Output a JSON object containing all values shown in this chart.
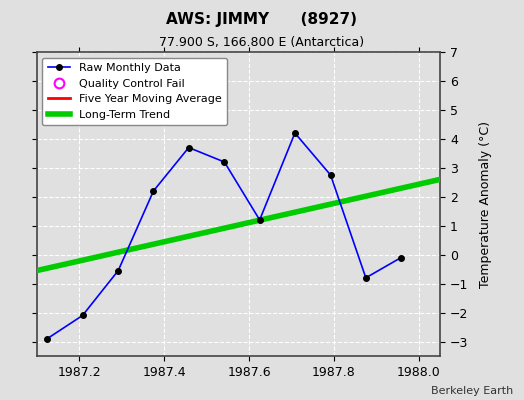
{
  "title": "AWS: JIMMY      (8927)",
  "subtitle": "77.900 S, 166.800 E (Antarctica)",
  "ylabel": "Temperature Anomaly (°C)",
  "credit": "Berkeley Earth",
  "xlim": [
    1987.1,
    1988.05
  ],
  "ylim": [
    -3.5,
    7.0
  ],
  "yticks": [
    -3,
    -2,
    -1,
    0,
    1,
    2,
    3,
    4,
    5,
    6,
    7
  ],
  "xticks": [
    1987.2,
    1987.4,
    1987.6,
    1987.8,
    1988.0
  ],
  "raw_x": [
    1987.125,
    1987.208,
    1987.292,
    1987.375,
    1987.458,
    1987.542,
    1987.625,
    1987.708,
    1987.792,
    1987.875,
    1987.958
  ],
  "raw_y": [
    -2.9,
    -2.1,
    -0.55,
    2.2,
    3.7,
    3.2,
    1.2,
    4.2,
    2.75,
    -0.8,
    -0.1
  ],
  "trend_x": [
    1987.1,
    1988.05
  ],
  "trend_y": [
    -0.55,
    2.6
  ],
  "raw_color": "#0000ff",
  "raw_marker_color": "#000000",
  "trend_color": "#00cc00",
  "mavg_color": "#ff0000",
  "qc_color": "#ff00ff",
  "bg_color": "#e0e0e0",
  "grid_color": "#ffffff",
  "legend_entries": [
    "Raw Monthly Data",
    "Quality Control Fail",
    "Five Year Moving Average",
    "Long-Term Trend"
  ]
}
